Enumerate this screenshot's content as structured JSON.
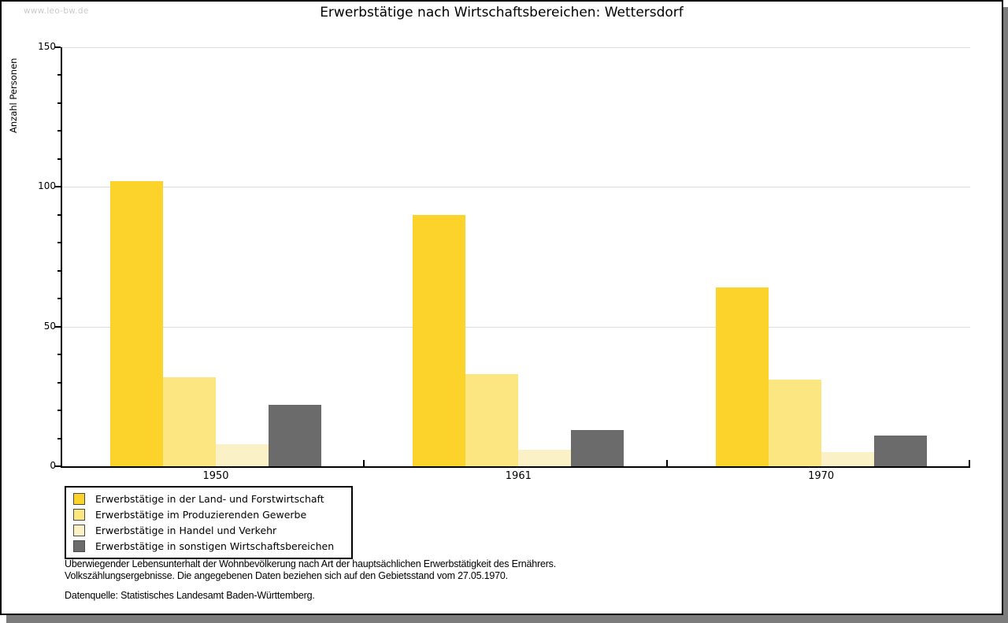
{
  "watermark": "www.leo-bw.de",
  "title": "Erwerbstätige nach Wirtschaftsbereichen: Wettersdorf",
  "chart_data": {
    "type": "bar",
    "title": "Erwerbstätige nach Wirtschaftsbereichen: Wettersdorf",
    "xlabel": "",
    "ylabel": "Anzahl Personen",
    "categories": [
      "1950",
      "1961",
      "1970"
    ],
    "series": [
      {
        "name": "Erwerbstätige in der Land- und Forstwirtschaft",
        "color": "#FCD32B",
        "values": [
          102,
          90,
          64
        ]
      },
      {
        "name": "Erwerbstätige im Produzierenden Gewerbe",
        "color": "#FBE682",
        "values": [
          32,
          33,
          31
        ]
      },
      {
        "name": "Erwerbstätige in Handel und Verkehr",
        "color": "#FAF1C6",
        "values": [
          8,
          6,
          5
        ]
      },
      {
        "name": "Erwerbstätige in sonstigen Wirtschaftsbereichen",
        "color": "#6B6B6B",
        "values": [
          22,
          13,
          11
        ]
      }
    ],
    "ylim": [
      0,
      150
    ],
    "yticks_major": [
      0,
      50,
      100,
      150
    ],
    "ytick_minor_step": 10,
    "grid": true,
    "legend_position": "bottom-left",
    "colors": {
      "gridline": "#dedede",
      "axis": "#000000",
      "shadow": "#7c7c7c",
      "watermark_text": "#cbcbcb"
    }
  },
  "footnotes": {
    "line1": "Überwiegender Lebensunterhalt der Wohnbevölkerung nach Art der hauptsächlichen Erwerbstätigkeit des Ernährers.",
    "line2": "Volkszählungsergebnisse. Die angegebenen Daten beziehen sich auf den Gebietsstand vom 27.05.1970."
  },
  "source": "Datenquelle: Statistisches Landesamt Baden-Württemberg."
}
